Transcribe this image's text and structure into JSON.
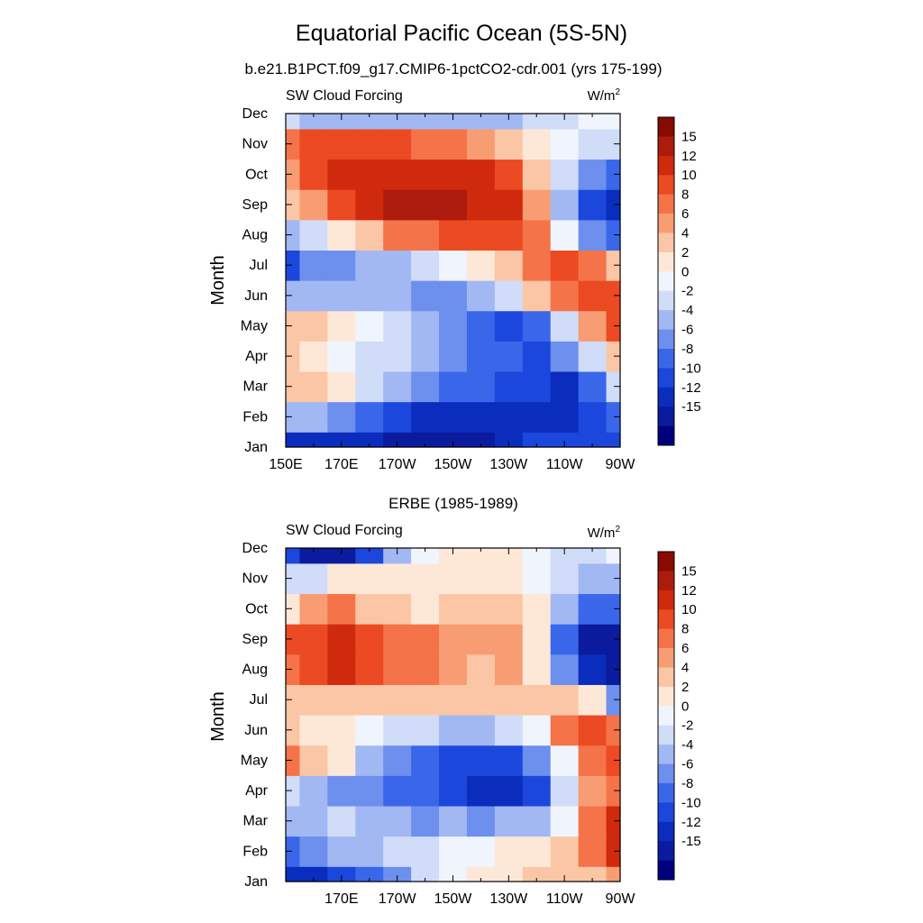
{
  "figure": {
    "title": "Equatorial Pacific Ocean (5S-5N)"
  },
  "colors": {
    "levels": [
      "#00007f",
      "#0b1b9e",
      "#0a2dbd",
      "#1c47dc",
      "#3a66ea",
      "#6d8fee",
      "#a2b8f3",
      "#d0dcf8",
      "#f0f5fd",
      "#fde8d8",
      "#fbc6a5",
      "#f89d73",
      "#f57349",
      "#eb4a22",
      "#d02a0e",
      "#ac1b0b",
      "#870b00"
    ],
    "frame": "#000000"
  },
  "chart_data": [
    {
      "type": "heatmap",
      "subtitle": "b.e21.B1PCT.f09_g17.CMIP6-1pctCO2-cdr.001 (yrs 175-199)",
      "left_label": "SW Cloud Forcing",
      "units": {
        "base": "W/m",
        "sup": "2"
      },
      "ylabel": "Month",
      "x_ticks": [
        "150E",
        "170E",
        "170W",
        "150W",
        "130W",
        "110W",
        "90W"
      ],
      "y_ticks": [
        "Jan",
        "Feb",
        "Mar",
        "Apr",
        "May",
        "Jun",
        "Jul",
        "Aug",
        "Sep",
        "Oct",
        "Nov",
        "Dec"
      ],
      "xlim_deg_east": [
        150,
        270
      ],
      "colorbar": {
        "labels": [
          "15",
          "12",
          "10",
          "8",
          "6",
          "4",
          "2",
          "0",
          "-2",
          "-4",
          "-6",
          "-8",
          "-10",
          "-12",
          "-15"
        ],
        "levels": [
          -15,
          -12,
          -10,
          -8,
          -6,
          -4,
          -2,
          0,
          2,
          4,
          6,
          8,
          10,
          12,
          15
        ]
      },
      "grid_lon_deg_east": [
        150,
        160,
        170,
        180,
        190,
        200,
        210,
        220,
        230,
        240,
        250,
        260,
        270
      ],
      "values": [
        [
          -11,
          -11,
          -11,
          -12,
          -13,
          -14,
          -14,
          -13,
          -11,
          -10,
          -9,
          -9,
          -10
        ],
        [
          -3,
          -4,
          -6,
          -8,
          -10,
          -11,
          -11,
          -11,
          -11,
          -11,
          -12,
          -10,
          -8
        ],
        [
          5,
          5,
          2,
          -2,
          -4,
          -6,
          -7,
          -8,
          -10,
          -10,
          -11,
          -8,
          -2
        ],
        [
          4,
          3,
          1,
          -1,
          -2,
          -3,
          -5,
          -7,
          -8,
          -9,
          -6,
          -1,
          4
        ],
        [
          4,
          4,
          2,
          1,
          -1,
          -3,
          -6,
          -8,
          -9,
          -8,
          -2,
          6,
          11
        ],
        [
          -3,
          -4,
          -4,
          -3,
          -3,
          -5,
          -5,
          -3,
          -1,
          4,
          8,
          11,
          10
        ],
        [
          -10,
          -6,
          -5,
          -4,
          -3,
          -2,
          0,
          2,
          5,
          9,
          11,
          9,
          5
        ],
        [
          -3,
          -1,
          2,
          5,
          8,
          9,
          10,
          10,
          11,
          9,
          0,
          -6,
          -8
        ],
        [
          4,
          6,
          10,
          14,
          15,
          15,
          15,
          14,
          13,
          7,
          -4,
          -9,
          -12
        ],
        [
          7,
          10,
          12,
          13,
          14,
          14,
          13,
          12,
          10,
          4,
          -2,
          -6,
          -7
        ],
        [
          8,
          10,
          11,
          11,
          10,
          9,
          8,
          7,
          5,
          2,
          0,
          -1,
          -1
        ],
        [
          -2,
          -3,
          -3,
          -4,
          -4,
          -4,
          -4,
          -3,
          -3,
          -2,
          -1,
          0,
          0
        ]
      ]
    },
    {
      "type": "heatmap",
      "subtitle": "ERBE (1985-1989)",
      "left_label": "SW Cloud Forcing",
      "units": {
        "base": "W/m",
        "sup": "2"
      },
      "ylabel": "Month",
      "x_ticks": [
        "170E",
        "170W",
        "150W",
        "130W",
        "110W",
        "90W"
      ],
      "y_ticks": [
        "Jan",
        "Feb",
        "Mar",
        "Apr",
        "May",
        "Jun",
        "Jul",
        "Aug",
        "Sep",
        "Oct",
        "Nov",
        "Dec"
      ],
      "xlim_deg_east": [
        150,
        270
      ],
      "colorbar": {
        "labels": [
          "15",
          "12",
          "10",
          "8",
          "6",
          "4",
          "2",
          "0",
          "-2",
          "-4",
          "-6",
          "-8",
          "-10",
          "-12",
          "-15"
        ],
        "levels": [
          -15,
          -12,
          -10,
          -8,
          -6,
          -4,
          -2,
          0,
          2,
          4,
          6,
          8,
          10,
          12,
          15
        ]
      },
      "grid_lon_deg_east": [
        150,
        160,
        170,
        180,
        190,
        200,
        210,
        220,
        230,
        240,
        250,
        260,
        270
      ],
      "values": [
        [
          -11,
          -11,
          -10,
          -8,
          -6,
          -2,
          0,
          2,
          3,
          4,
          4,
          5,
          6
        ],
        [
          -7,
          -6,
          -4,
          -3,
          -2,
          -1,
          0,
          1,
          2,
          3,
          4,
          8,
          12
        ],
        [
          -4,
          -3,
          -2,
          -3,
          -4,
          -5,
          -4,
          -5,
          -4,
          -3,
          1,
          9,
          13
        ],
        [
          -2,
          -3,
          -5,
          -6,
          -7,
          -8,
          -10,
          -12,
          -11,
          -9,
          -2,
          7,
          9
        ],
        [
          8,
          5,
          2,
          -3,
          -6,
          -7,
          -9,
          -10,
          -9,
          -6,
          0,
          9,
          10
        ],
        [
          5,
          3,
          2,
          1,
          -1,
          -2,
          -3,
          -3,
          -2,
          0,
          8,
          10,
          8
        ],
        [
          5,
          5,
          4,
          4,
          4,
          5,
          5,
          4,
          5,
          5,
          5,
          2,
          -5
        ],
        [
          9,
          11,
          12,
          10,
          9,
          8,
          7,
          5,
          6,
          3,
          -6,
          -11,
          -13
        ],
        [
          10,
          11,
          12,
          10,
          9,
          8,
          7,
          7,
          6,
          3,
          -8,
          -13,
          -14
        ],
        [
          3,
          6,
          8,
          5,
          4,
          3,
          4,
          4,
          4,
          2,
          -4,
          -7,
          -8
        ],
        [
          -2,
          -1,
          2,
          3,
          3,
          3,
          3,
          2,
          2,
          0,
          -2,
          -3,
          -3
        ],
        [
          -10,
          -13,
          -13,
          -10,
          -4,
          0,
          2,
          2,
          2,
          1,
          -1,
          -2,
          0
        ]
      ]
    }
  ]
}
